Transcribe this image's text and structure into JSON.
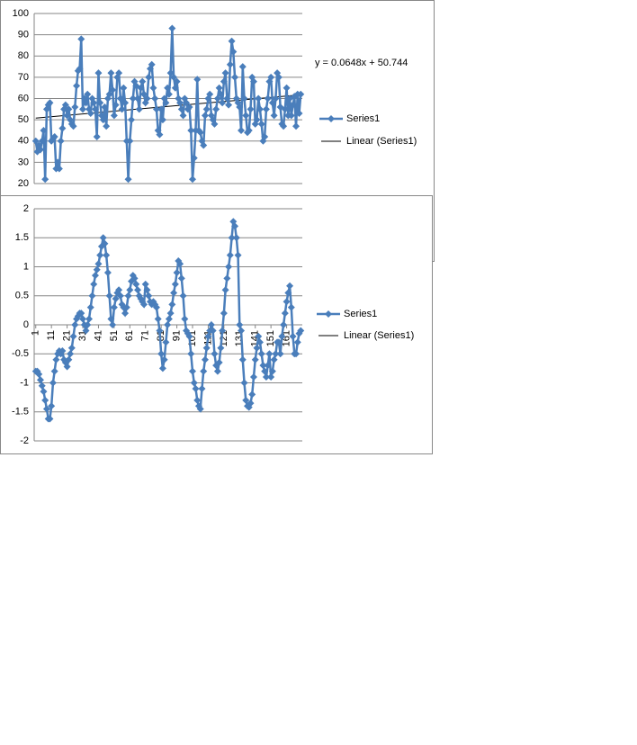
{
  "chart_data": [
    {
      "type": "line",
      "xlim": [
        0,
        171
      ],
      "ylim": [
        20,
        100
      ],
      "yticks": [
        20,
        30,
        40,
        50,
        60,
        70,
        80,
        90,
        100
      ],
      "grid": true,
      "legend": "right",
      "series": [
        {
          "name": "Series1",
          "color": "#4a7ebb",
          "values": [
            40,
            35,
            38,
            36,
            40,
            45,
            22,
            55,
            57,
            58,
            40,
            41,
            42,
            27,
            30,
            27,
            40,
            46,
            55,
            57,
            52,
            55,
            50,
            48,
            47,
            56,
            66,
            73,
            74,
            88,
            55,
            60,
            58,
            62,
            55,
            53,
            60,
            58,
            55,
            42,
            72,
            58,
            52,
            50,
            56,
            47,
            60,
            62,
            72,
            64,
            52,
            57,
            70,
            72,
            60,
            55,
            65,
            58,
            40,
            22,
            40,
            50,
            60,
            68,
            66,
            60,
            55,
            65,
            68,
            62,
            58,
            60,
            70,
            74,
            76,
            65,
            60,
            55,
            45,
            43,
            55,
            50,
            60,
            58,
            65,
            62,
            72,
            93,
            70,
            65,
            68,
            60,
            58,
            55,
            52,
            60,
            58,
            55,
            56,
            45,
            22,
            32,
            45,
            69,
            45,
            44,
            40,
            38,
            52,
            55,
            60,
            62,
            52,
            50,
            48,
            55,
            60,
            65,
            62,
            58,
            68,
            72,
            60,
            57,
            76,
            87,
            82,
            70,
            60,
            58,
            56,
            45,
            75,
            60,
            52,
            44,
            45,
            55,
            70,
            68,
            48,
            50,
            60,
            55,
            48,
            40,
            42,
            55,
            60,
            68,
            70,
            58,
            52,
            60,
            72,
            70,
            56,
            48,
            47,
            55,
            65,
            52,
            60,
            52,
            57,
            61,
            47,
            62,
            53,
            62
          ]
        }
      ],
      "trendline": {
        "name": "Linear (Series1)",
        "equation": "y = 0.0648x + 50.744",
        "slope": 0.0648,
        "intercept": 50.744,
        "color": "#000000"
      }
    },
    {
      "type": "line",
      "xlim": [
        0,
        171
      ],
      "xticks": [
        1,
        11,
        21,
        31,
        41,
        51,
        61,
        71,
        81,
        91,
        101,
        111,
        121,
        131,
        141,
        151,
        161
      ],
      "ylim": [
        -2,
        2
      ],
      "yticks": [
        -2,
        -1.5,
        -1,
        -0.5,
        0,
        0.5,
        1,
        1.5,
        2
      ],
      "grid": true,
      "legend": "right",
      "series": [
        {
          "name": "Series1",
          "color": "#4a7ebb",
          "values": [
            -0.8,
            -0.8,
            -0.85,
            -0.95,
            -1.05,
            -1.15,
            -1.3,
            -1.45,
            -1.62,
            -1.62,
            -1.4,
            -1.0,
            -0.8,
            -0.6,
            -0.5,
            -0.45,
            -0.5,
            -0.45,
            -0.6,
            -0.65,
            -0.72,
            -0.6,
            -0.5,
            -0.4,
            -0.2,
            0.0,
            0.1,
            0.15,
            0.2,
            0.2,
            0.1,
            0.0,
            -0.1,
            0.0,
            0.1,
            0.3,
            0.5,
            0.7,
            0.85,
            0.95,
            1.05,
            1.2,
            1.35,
            1.5,
            1.4,
            1.2,
            0.9,
            0.5,
            0.1,
            0.0,
            0.3,
            0.45,
            0.55,
            0.6,
            0.5,
            0.35,
            0.3,
            0.2,
            0.3,
            0.5,
            0.6,
            0.75,
            0.85,
            0.8,
            0.7,
            0.6,
            0.5,
            0.45,
            0.4,
            0.35,
            0.7,
            0.6,
            0.5,
            0.4,
            0.35,
            0.4,
            0.35,
            0.3,
            0.1,
            -0.1,
            -0.5,
            -0.75,
            -0.6,
            -0.3,
            0.0,
            0.1,
            0.2,
            0.35,
            0.55,
            0.7,
            0.9,
            1.1,
            1.05,
            0.8,
            0.5,
            0.1,
            -0.1,
            -0.15,
            -0.2,
            -0.5,
            -0.8,
            -1.0,
            -1.1,
            -1.3,
            -1.4,
            -1.45,
            -1.1,
            -0.8,
            -0.6,
            -0.4,
            -0.2,
            -0.1,
            0.0,
            -0.1,
            -0.5,
            -0.7,
            -0.8,
            -0.65,
            -0.4,
            -0.1,
            0.2,
            0.6,
            0.8,
            1.0,
            1.2,
            1.5,
            1.78,
            1.7,
            1.5,
            1.2,
            0.0,
            -0.1,
            -0.6,
            -1.0,
            -1.3,
            -1.4,
            -1.42,
            -1.35,
            -1.2,
            -0.9,
            -0.6,
            -0.4,
            -0.2,
            -0.3,
            -0.5,
            -0.7,
            -0.8,
            -0.9,
            -0.7,
            -0.5,
            -0.9,
            -0.8,
            -0.6,
            -0.5,
            -0.3,
            -0.3,
            -0.5,
            -0.2,
            0.0,
            0.2,
            0.4,
            0.55,
            0.67,
            0.3,
            -0.2,
            -0.5,
            -0.5,
            -0.3,
            -0.15,
            -0.1
          ]
        }
      ],
      "trendline": {
        "name": "Linear (Series1)",
        "color": "#000000"
      }
    }
  ]
}
